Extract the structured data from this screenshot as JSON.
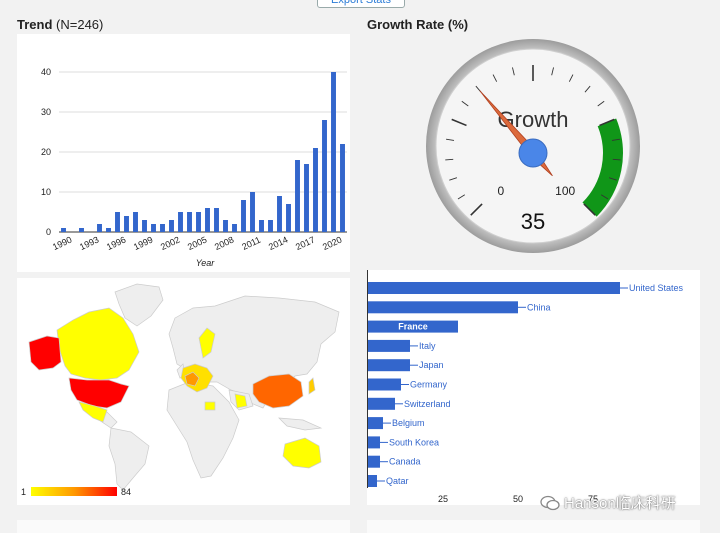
{
  "header": {
    "export_label": "Export Stats"
  },
  "trend": {
    "title": "Trend",
    "subtitle": "(N=246)",
    "chart_data": {
      "type": "bar",
      "xlabel": "Year",
      "ylabel": "",
      "ylim": [
        0,
        45
      ],
      "yticks": [
        0,
        10,
        20,
        30,
        40
      ],
      "xtick_labels": [
        "1990",
        "1993",
        "1996",
        "1999",
        "2002",
        "2005",
        "2008",
        "2011",
        "2014",
        "2017",
        "2020"
      ],
      "categories": [
        1990,
        1991,
        1992,
        1993,
        1994,
        1995,
        1996,
        1997,
        1998,
        1999,
        2000,
        2001,
        2002,
        2003,
        2004,
        2005,
        2006,
        2007,
        2008,
        2009,
        2010,
        2011,
        2012,
        2013,
        2014,
        2015,
        2016,
        2017,
        2018,
        2019,
        2020,
        2021
      ],
      "values": [
        1,
        0,
        1,
        0,
        2,
        1,
        5,
        4,
        5,
        3,
        2,
        2,
        3,
        5,
        5,
        5,
        6,
        6,
        3,
        2,
        8,
        10,
        3,
        3,
        9,
        7,
        18,
        17,
        21,
        28,
        40,
        22
      ],
      "color": "#3366cc",
      "grid": true
    }
  },
  "gauge": {
    "title": "Growth Rate (%)",
    "chart_data": {
      "type": "gauge",
      "label": "Growth",
      "value": 35,
      "min": 0,
      "max": 100,
      "min_label": "0",
      "max_label": "100",
      "green_from": 75,
      "green_to": 100,
      "green_color": "#109618"
    }
  },
  "map": {
    "legend_min": "1",
    "legend_max": "84",
    "color_low": "#ffff00",
    "color_high": "#ff0000",
    "land_color": "#eeeeee"
  },
  "countries": {
    "chart_data": {
      "type": "bar",
      "orientation": "horizontal",
      "categories": [
        "United States",
        "China",
        "France",
        "Italy",
        "Japan",
        "Germany",
        "Switzerland",
        "Belgium",
        "South Korea",
        "Canada",
        "Qatar"
      ],
      "values": [
        84,
        50,
        30,
        14,
        14,
        11,
        9,
        5,
        4,
        4,
        3
      ],
      "highlighted": "France",
      "xticks": [
        "25",
        "50",
        "75"
      ],
      "xlim": [
        0,
        100
      ],
      "color": "#3366cc"
    }
  },
  "watermark": {
    "text": "Hanson临床科研"
  }
}
